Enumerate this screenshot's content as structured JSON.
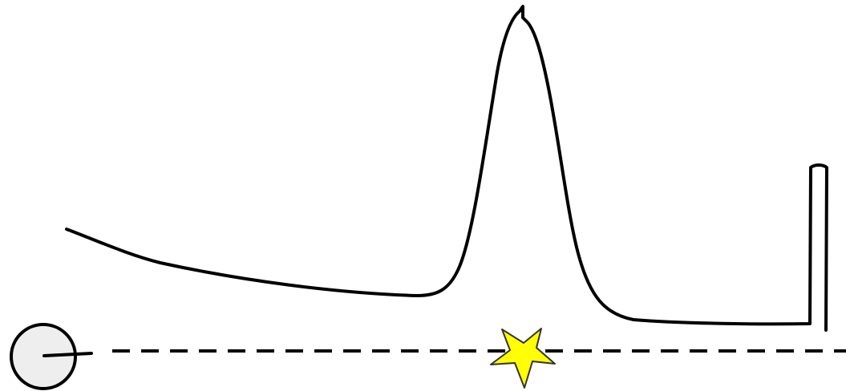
{
  "scene": {
    "background_color": "#ffffff",
    "line_color": "#000000",
    "terrain_label": "",
    "ball": {
      "icon": "ball-icon",
      "fill_color": "#eeeeee",
      "stroke_color": "#000000"
    },
    "aim_line": {
      "style": "dashed",
      "color": "#000000"
    },
    "star": {
      "icon": "star-icon",
      "fill_color": "#ffff00",
      "stroke_color": "#333333"
    },
    "goal": {
      "icon": "goal-post-icon",
      "color": "#000000"
    }
  }
}
